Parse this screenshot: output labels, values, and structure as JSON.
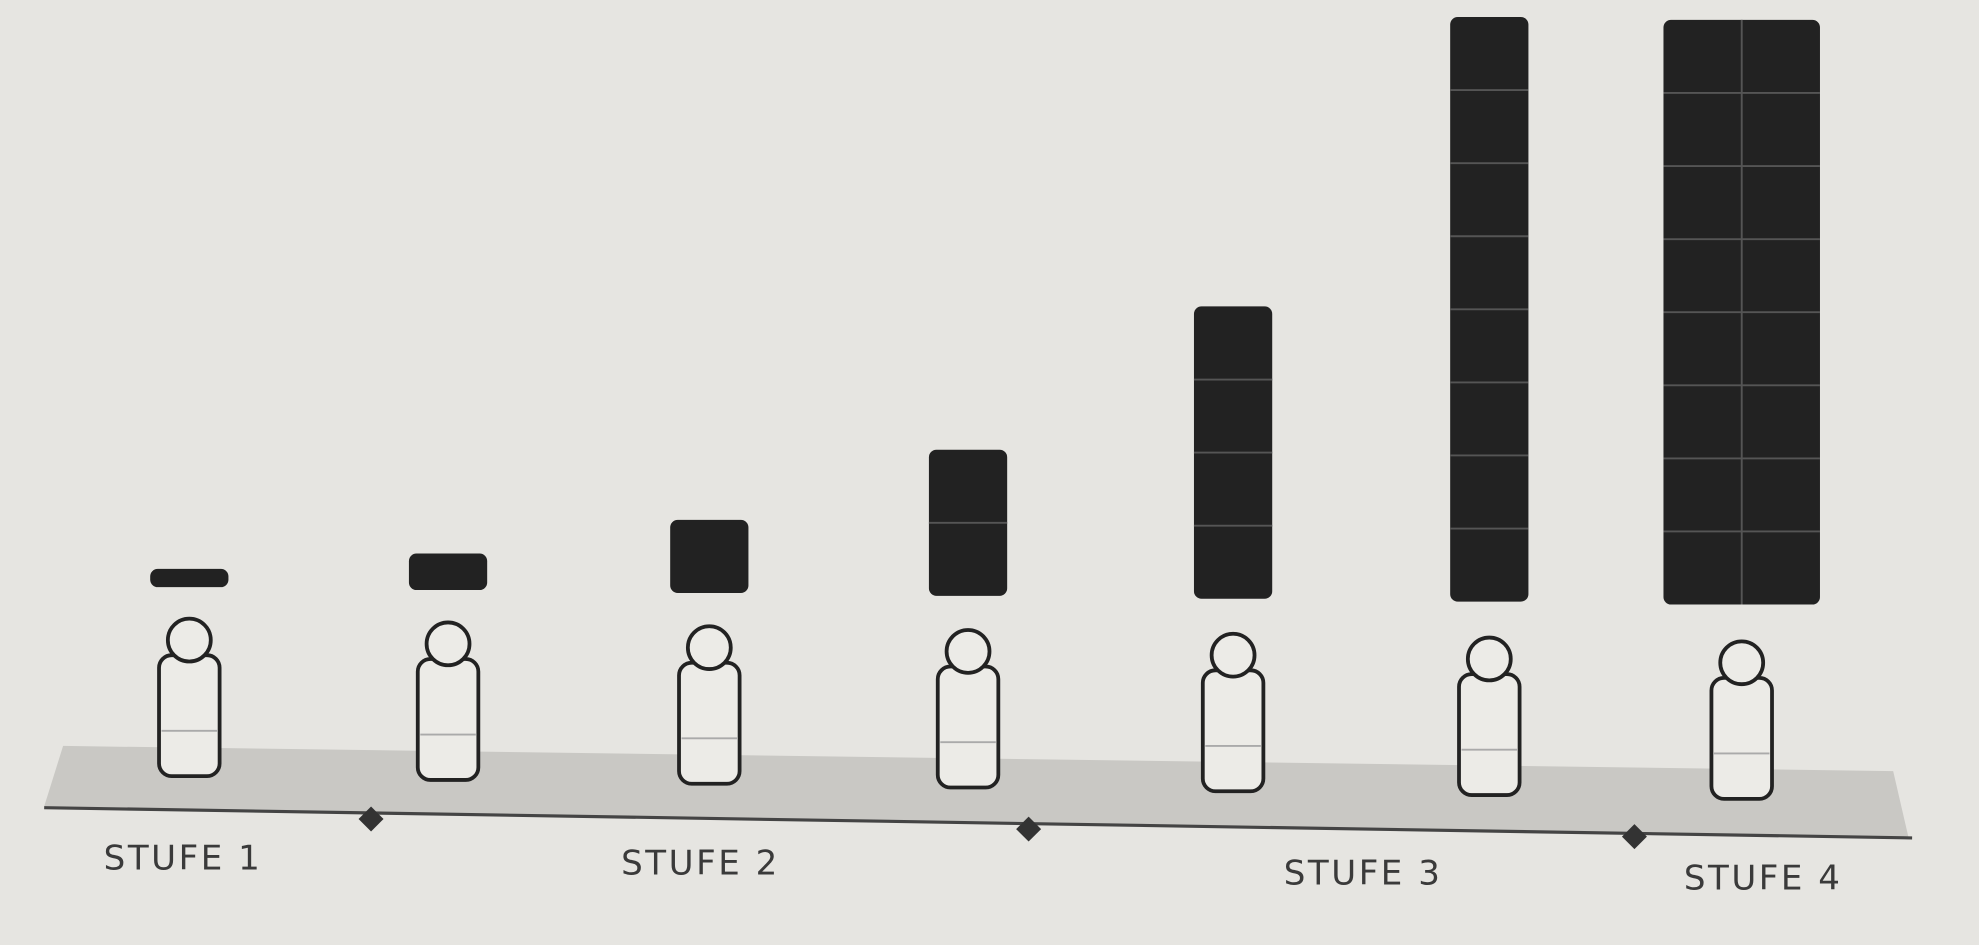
{
  "chart_data": {
    "type": "pictogram",
    "values": [
      0.25,
      0.5,
      1,
      2,
      4,
      8,
      16
    ],
    "color": "#222222",
    "stages": [
      "STUFE 1",
      "STUFE 2",
      "STUFE 3",
      "STUFE 4"
    ]
  }
}
